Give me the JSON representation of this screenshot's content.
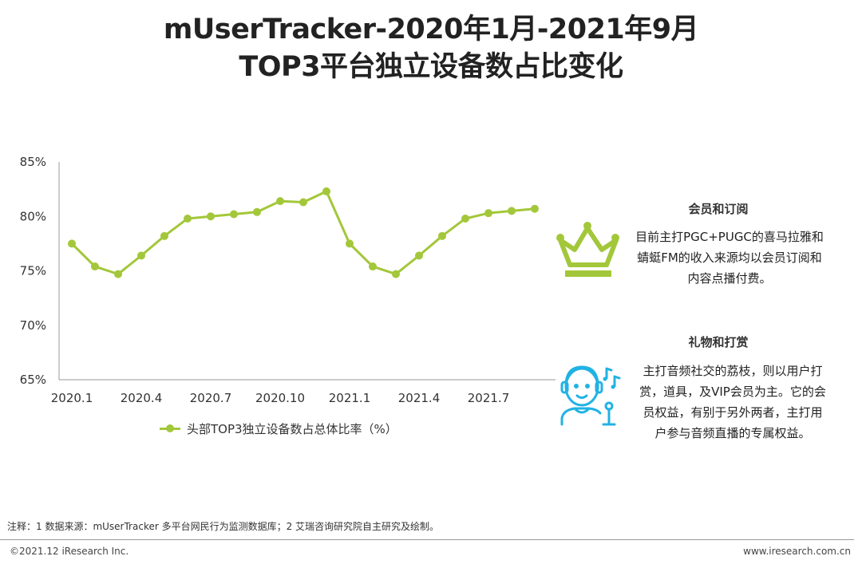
{
  "title": {
    "line1": "mUserTracker-2020年1月-2021年9月",
    "line2": "TOP3平台独立设备数占比变化"
  },
  "chart_data": {
    "type": "line",
    "x": [
      "2020.1",
      "2020.2",
      "2020.3",
      "2020.4",
      "2020.5",
      "2020.6",
      "2020.7",
      "2020.8",
      "2020.9",
      "2020.10",
      "2020.11",
      "2020.12",
      "2021.1",
      "2021.2",
      "2021.3",
      "2021.4",
      "2021.5",
      "2021.6",
      "2021.7",
      "2021.8",
      "2021.9"
    ],
    "tick_labels": [
      "2020.1",
      "2020.4",
      "2020.7",
      "2020.10",
      "2021.1",
      "2021.4",
      "2021.7"
    ],
    "series": [
      {
        "name": "头部TOP3独立设备数占总体比率（%）",
        "values": [
          77.5,
          75.4,
          74.7,
          76.4,
          78.2,
          79.8,
          80.0,
          80.2,
          80.4,
          81.4,
          81.3,
          82.3,
          77.5,
          75.4,
          74.7,
          76.4,
          78.2,
          79.8,
          80.3,
          80.5,
          80.7
        ]
      }
    ],
    "ylim": [
      65,
      85
    ],
    "yticks": [
      "65%",
      "70%",
      "75%",
      "80%",
      "85%"
    ],
    "ytick_values": [
      65,
      70,
      75,
      80,
      85
    ],
    "grid": false,
    "legend": "bottom",
    "color": "#a3c73a"
  },
  "panels": [
    {
      "icon": "crown-icon",
      "title": "会员和订阅",
      "lines": [
        "目前主打PGC+PUGC的喜马拉雅和",
        "蜻蜓FM的收入来源均以会员订阅和",
        "内容点播付费。"
      ]
    },
    {
      "icon": "singer-icon",
      "title": "礼物和打赏",
      "lines": [
        "主打音频社交的荔枝，则以用户打",
        "赏，道具，及VIP会员为主。它的会",
        "员权益，有别于另外两者，主打用",
        "户参与音频直播的专属权益。"
      ]
    }
  ],
  "colors": {
    "green": "#a3c73a",
    "cyan": "#21b2e4"
  },
  "footnote": "注释：1 数据来源：mUserTracker 多平台网民行为监测数据库；2 艾瑞咨询研究院自主研究及绘制。",
  "copyright": "©2021.12 iResearch Inc.",
  "website": "www.iresearch.com.cn"
}
